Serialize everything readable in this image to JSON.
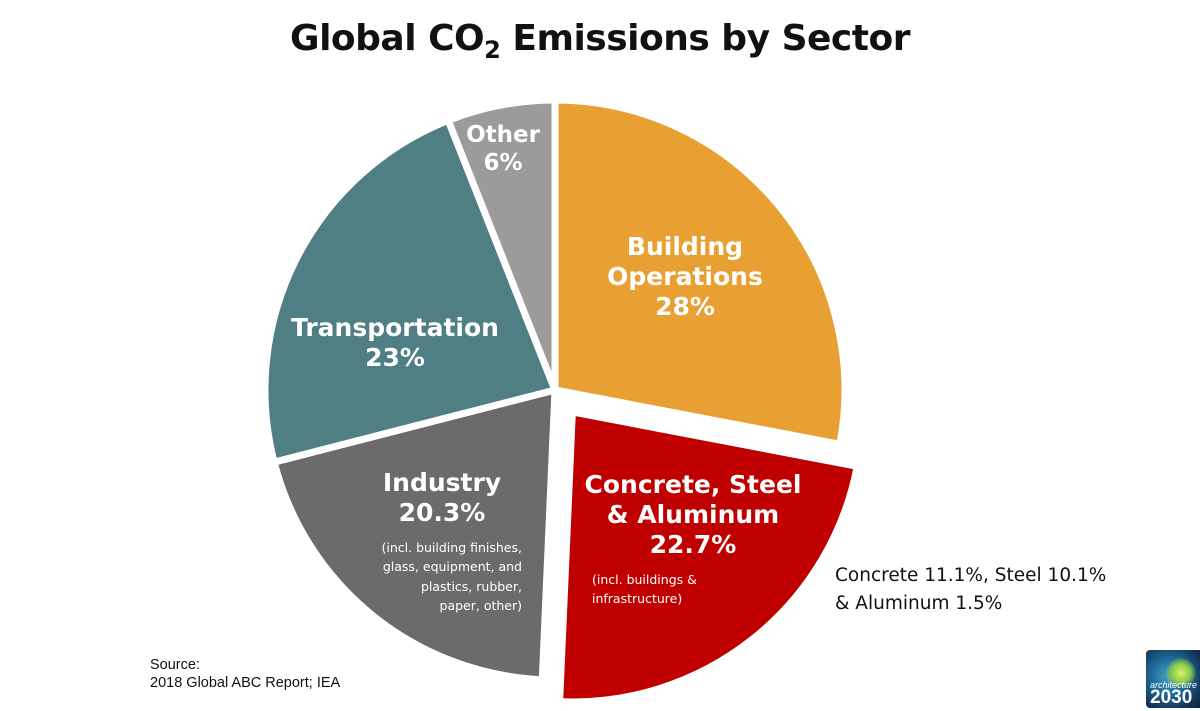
{
  "title": {
    "prefix": "Global CO",
    "subscript": "2",
    "suffix": " Emissions by Sector"
  },
  "chart_data": {
    "type": "pie",
    "title": "Global CO2 Emissions by Sector",
    "slices": [
      {
        "label": "Building Operations",
        "label_lines": [
          "Building",
          "Operations"
        ],
        "value": 28,
        "value_label": "28%",
        "color": "#E8A033",
        "exploded": false
      },
      {
        "label": "Concrete, Steel & Aluminum",
        "label_lines": [
          "Concrete, Steel",
          "& Aluminum"
        ],
        "value": 22.7,
        "value_label": "22.7%",
        "color": "#C00000",
        "exploded": true,
        "note_lines": [
          "(incl. buildings &",
          "infrastructure)"
        ]
      },
      {
        "label": "Industry",
        "label_lines": [
          "Industry"
        ],
        "value": 20.3,
        "value_label": "20.3%",
        "color": "#6B6B6B",
        "exploded": false,
        "note_lines": [
          "(incl. building finishes,",
          "glass, equipment, and",
          "plastics, rubber,",
          "paper, other)"
        ]
      },
      {
        "label": "Transportation",
        "label_lines": [
          "Transportation"
        ],
        "value": 23,
        "value_label": "23%",
        "color": "#4F7F84",
        "exploded": false
      },
      {
        "label": "Other",
        "label_lines": [
          "Other"
        ],
        "value": 6,
        "value_label": "6%",
        "color": "#9B9B9B",
        "exploded": false
      }
    ],
    "start_angle": "12 o'clock",
    "direction": "clockwise",
    "separator_color": "#ffffff"
  },
  "breakdown": {
    "lines": [
      "Concrete 11.1%, Steel 10.1%",
      "& Aluminum 1.5%"
    ]
  },
  "source": {
    "heading": "Source:",
    "text": "2018 Global ABC Report; IEA"
  },
  "logo": {
    "name": "architecture-2030-logo",
    "line1": "architecture",
    "line2": "2030"
  }
}
